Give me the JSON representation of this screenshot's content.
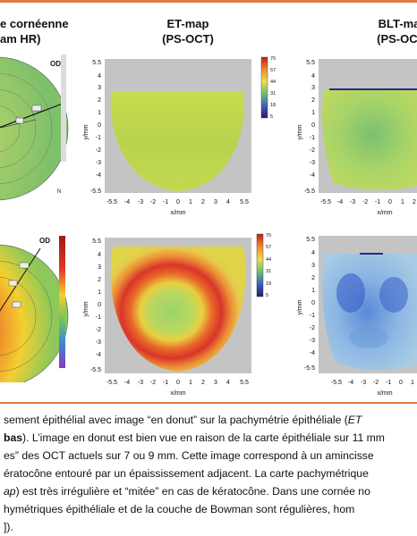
{
  "columns": {
    "left_title": [
      "e cornéenne",
      "am HR)"
    ],
    "mid_title": [
      "ET-map",
      "(PS-OCT)"
    ],
    "right_title": [
      "BLT-map",
      "(PS-OCT)"
    ]
  },
  "panels": {
    "top_left": {
      "eye_label": "OD",
      "corner_label": "N"
    },
    "bottom_left": {
      "eye_label": "OD"
    },
    "top_mid": {
      "y_ticks": [
        "5.5",
        "4",
        "3",
        "2",
        "1",
        "0",
        "-1",
        "-2",
        "-3",
        "-4",
        "-5.5"
      ],
      "x_ticks": [
        "-5.5",
        "-4",
        "-3",
        "-2",
        "-1",
        "0",
        "1",
        "2",
        "3",
        "4",
        "5.5"
      ],
      "xlabel": "x/mm",
      "ylabel": "y/mm",
      "colorbar": [
        "70",
        "57",
        "44",
        "31",
        "18",
        "5"
      ]
    },
    "bottom_mid": {
      "y_ticks": [
        "5.5",
        "4",
        "3",
        "2",
        "1",
        "0",
        "-1",
        "-2",
        "-3",
        "-4",
        "-5.5"
      ],
      "x_ticks": [
        "-5.5",
        "-4",
        "-3",
        "-2",
        "-1",
        "0",
        "1",
        "2",
        "3",
        "4",
        "5.5"
      ],
      "xlabel": "x/mm",
      "ylabel": "y/mm",
      "colorbar": [
        "70",
        "57",
        "44",
        "31",
        "18",
        "5"
      ]
    },
    "top_right": {
      "y_ticks": [
        "5.5",
        "4",
        "3",
        "2",
        "1",
        "0",
        "-1",
        "-2",
        "-3",
        "-4",
        "-5.5"
      ],
      "x_ticks": [
        "-5.5",
        "-4",
        "-3",
        "-2",
        "-1",
        "0",
        "1",
        "2"
      ],
      "xlabel": "x/mm",
      "ylabel": "y/mm"
    },
    "bottom_right": {
      "y_ticks": [
        "5.5",
        "4",
        "3",
        "2",
        "1",
        "0",
        "-1",
        "-2",
        "-3",
        "-4",
        "-5.5"
      ],
      "x_ticks": [
        "-5.5",
        "-4",
        "-3",
        "-2",
        "-1",
        "0",
        "1"
      ],
      "xlabel": "x/mm",
      "ylabel": "y/mm"
    }
  },
  "caption": {
    "line1_a": "sement épithélial avec image “en donut” sur la pachymétrie épithéliale (",
    "line1_b": "ET",
    "line2_a": "bas",
    "line2_b": "). L’image en donut est bien vue en raison de la carte épithéliale sur 11 mm",
    "line3": "es” des OCT actuels sur 7 ou 9 mm. Cette image correspond à un amincisse",
    "line4": "ératocône entouré par un épaississement adjacent. La carte pachymétrique",
    "line5_a": "ap",
    "line5_b": ") est très irrégulière et “mitée” en cas de kératocône. Dans une cornée no",
    "line6": "hymétriques épithéliale et de la couche de Bowman sont régulières, hom",
    "line7": "])."
  },
  "colors": {
    "accent_rule": "#e07a4a",
    "panel_bg": "#c4c4c4"
  }
}
